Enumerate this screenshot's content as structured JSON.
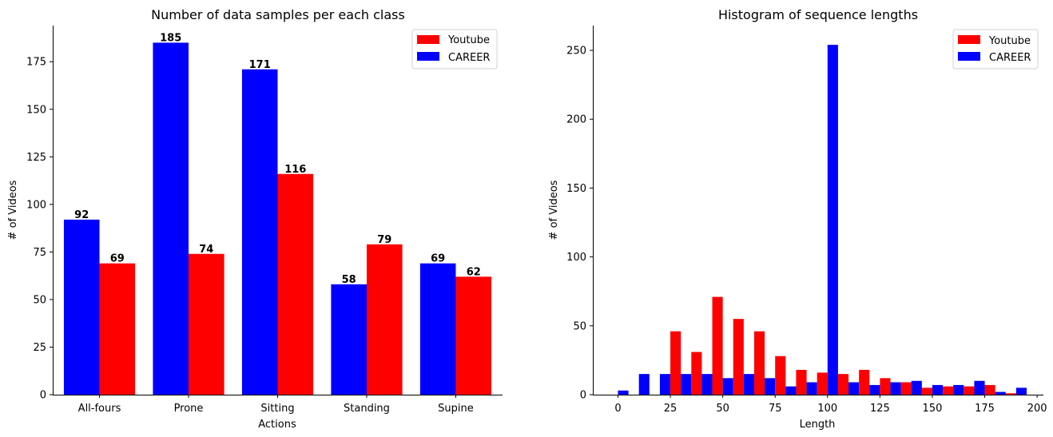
{
  "chart_data": [
    {
      "type": "bar",
      "title": "Number of data samples per each class",
      "xlabel": "Actions",
      "ylabel": "# of Videos",
      "categories": [
        "All-fours",
        "Prone",
        "Sitting",
        "Standing",
        "Supine"
      ],
      "ylim": [
        0,
        194
      ],
      "yticks": [
        0,
        25,
        50,
        75,
        100,
        125,
        150,
        175
      ],
      "legend_position": "top-right",
      "series": [
        {
          "name": "CAREER",
          "color": "#0000ff",
          "values": [
            92,
            185,
            171,
            58,
            69
          ]
        },
        {
          "name": "Youtube",
          "color": "#ff0000",
          "values": [
            69,
            74,
            116,
            79,
            62
          ]
        }
      ],
      "legend": [
        {
          "name": "Youtube",
          "color": "#ff0000"
        },
        {
          "name": "CAREER",
          "color": "#0000ff"
        }
      ]
    },
    {
      "type": "bar",
      "title": "Histogram of sequence lengths",
      "xlabel": "Length",
      "ylabel": "# of Videos",
      "xlim": [
        -12,
        203
      ],
      "ylim": [
        0,
        268
      ],
      "xticks": [
        0,
        25,
        50,
        75,
        100,
        125,
        150,
        175,
        200
      ],
      "yticks": [
        0,
        50,
        100,
        150,
        200,
        250
      ],
      "legend_position": "top-right",
      "bin_starts": [
        0,
        10,
        20,
        30,
        40,
        50,
        60,
        70,
        80,
        90,
        100,
        110,
        120,
        130,
        140,
        150,
        160,
        170,
        180,
        190
      ],
      "bin_width": 10,
      "series": [
        {
          "name": "Youtube",
          "color": "#ff0000",
          "values": [
            0,
            0,
            0,
            46,
            31,
            71,
            55,
            46,
            28,
            18,
            16,
            15,
            18,
            12,
            9,
            5,
            6,
            6,
            7,
            1
          ]
        },
        {
          "name": "CAREER",
          "color": "#0000ff",
          "values": [
            3,
            15,
            15,
            15,
            15,
            12,
            15,
            12,
            6,
            9,
            254,
            9,
            7,
            9,
            10,
            7,
            7,
            10,
            2,
            5
          ]
        }
      ],
      "legend": [
        {
          "name": "Youtube",
          "color": "#ff0000"
        },
        {
          "name": "CAREER",
          "color": "#0000ff"
        }
      ]
    }
  ]
}
